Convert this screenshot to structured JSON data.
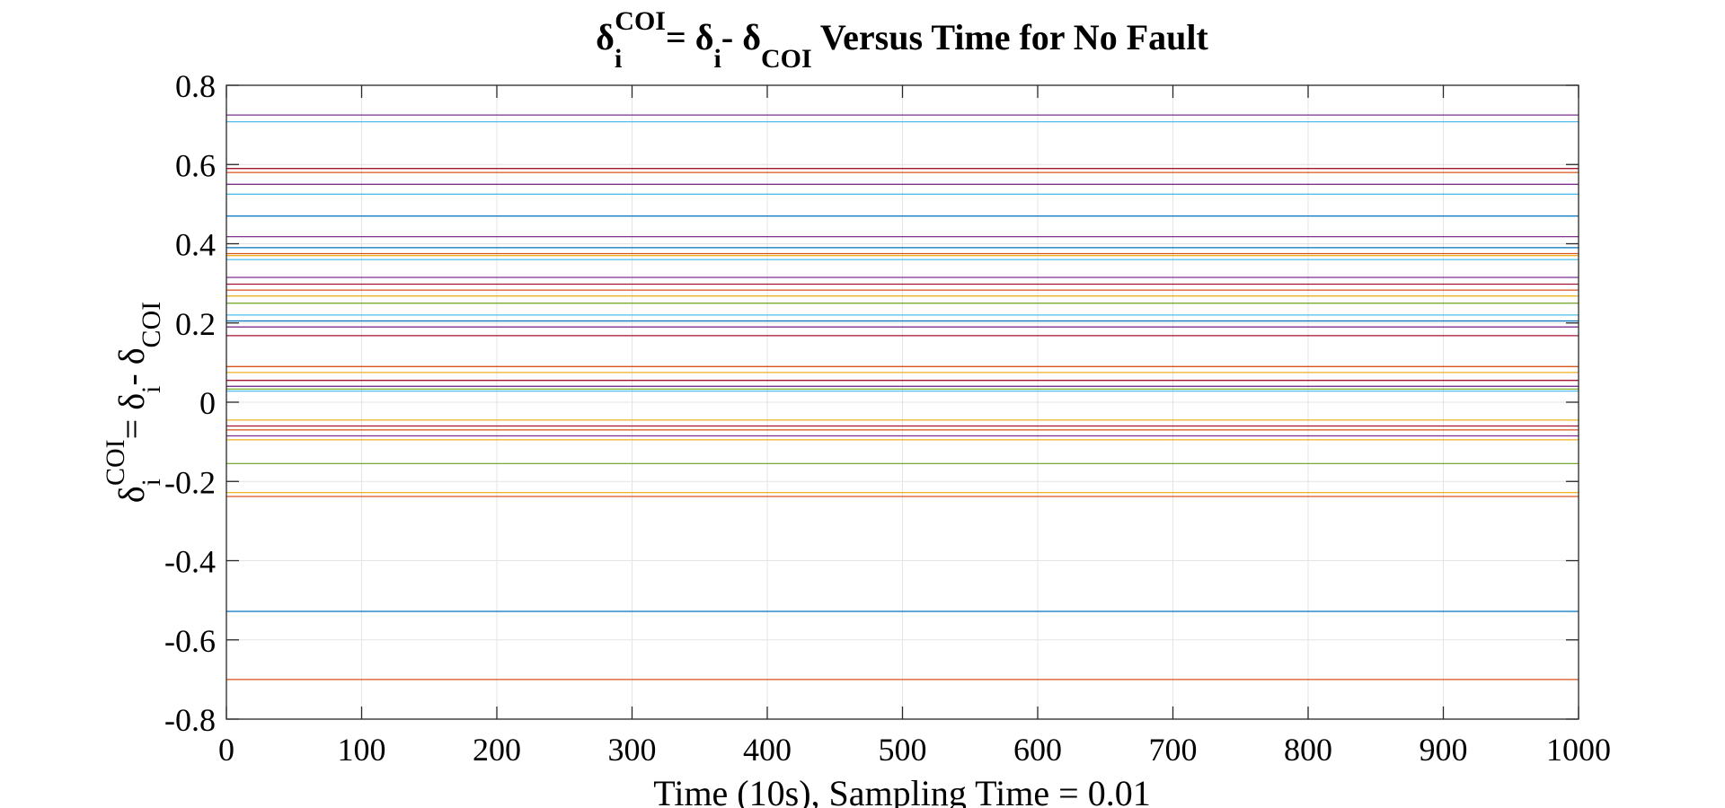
{
  "chart_data": {
    "type": "line",
    "title": {
      "delta": "δ",
      "sub_i": "i",
      "sup_coi": "COI",
      "eq": "= δ",
      "sub_i2": "i",
      "minus": "- δ",
      "sub_coi": "COI",
      "rest": " Versus Time for No Fault"
    },
    "xlabel": "Time (10s), Sampling Time = 0.01",
    "ylabel": {
      "delta": "δ",
      "sub_i": "i",
      "sup_coi": "COI",
      "eq": "= δ",
      "sub_i2": "i",
      "minus": "- δ",
      "sub_coi": "COI"
    },
    "xlim": [
      0,
      1000
    ],
    "ylim": [
      -0.8,
      0.8
    ],
    "xticks": [
      0,
      100,
      200,
      300,
      400,
      500,
      600,
      700,
      800,
      900,
      1000
    ],
    "yticks": [
      -0.8,
      -0.6,
      -0.4,
      -0.2,
      0,
      0.2,
      0.4,
      0.6,
      0.8
    ],
    "xtick_labels": [
      "0",
      "100",
      "200",
      "300",
      "400",
      "500",
      "600",
      "700",
      "800",
      "900",
      "1000"
    ],
    "ytick_labels": [
      "-0.8",
      "-0.6",
      "-0.4",
      "-0.2",
      "0",
      "0.2",
      "0.4",
      "0.6",
      "0.8"
    ],
    "grid": true,
    "x": [
      0,
      1000
    ],
    "series": [
      {
        "color": "#7e2f8e",
        "values": [
          0.725,
          0.725
        ]
      },
      {
        "color": "#4dbeee",
        "values": [
          0.708,
          0.708
        ]
      },
      {
        "color": "#a2142f",
        "values": [
          0.59,
          0.59
        ]
      },
      {
        "color": "#d95319",
        "values": [
          0.58,
          0.58
        ]
      },
      {
        "color": "#7e2f8e",
        "values": [
          0.55,
          0.55
        ]
      },
      {
        "color": "#4dbeee",
        "values": [
          0.525,
          0.525
        ]
      },
      {
        "color": "#0072bd",
        "values": [
          0.47,
          0.47
        ]
      },
      {
        "color": "#7e2f8e",
        "values": [
          0.418,
          0.418
        ]
      },
      {
        "color": "#0072bd",
        "values": [
          0.39,
          0.39
        ]
      },
      {
        "color": "#d95319",
        "values": [
          0.375,
          0.375
        ]
      },
      {
        "color": "#edb120",
        "values": [
          0.37,
          0.37
        ]
      },
      {
        "color": "#4dbeee",
        "values": [
          0.36,
          0.36
        ]
      },
      {
        "color": "#7e2f8e",
        "values": [
          0.315,
          0.315
        ]
      },
      {
        "color": "#a2142f",
        "values": [
          0.298,
          0.298
        ]
      },
      {
        "color": "#d95319",
        "values": [
          0.283,
          0.283
        ]
      },
      {
        "color": "#edb120",
        "values": [
          0.268,
          0.268
        ]
      },
      {
        "color": "#77ac30",
        "values": [
          0.25,
          0.25
        ]
      },
      {
        "color": "#4dbeee",
        "values": [
          0.22,
          0.22
        ]
      },
      {
        "color": "#0072bd",
        "values": [
          0.205,
          0.205
        ]
      },
      {
        "color": "#7e2f8e",
        "values": [
          0.19,
          0.19
        ]
      },
      {
        "color": "#a2142f",
        "values": [
          0.168,
          0.168
        ]
      },
      {
        "color": "#d95319",
        "values": [
          0.09,
          0.09
        ]
      },
      {
        "color": "#edb120",
        "values": [
          0.075,
          0.075
        ]
      },
      {
        "color": "#a2142f",
        "values": [
          0.055,
          0.055
        ]
      },
      {
        "color": "#7e2f8e",
        "values": [
          0.04,
          0.04
        ]
      },
      {
        "color": "#77ac30",
        "values": [
          0.033,
          0.033
        ]
      },
      {
        "color": "#4dbeee",
        "values": [
          0.028,
          0.028
        ]
      },
      {
        "color": "#edb120",
        "values": [
          -0.045,
          -0.045
        ]
      },
      {
        "color": "#a2142f",
        "values": [
          -0.06,
          -0.06
        ]
      },
      {
        "color": "#d95319",
        "values": [
          -0.07,
          -0.07
        ]
      },
      {
        "color": "#7e2f8e",
        "values": [
          -0.085,
          -0.085
        ]
      },
      {
        "color": "#edb120",
        "values": [
          -0.095,
          -0.095
        ]
      },
      {
        "color": "#77ac30",
        "values": [
          -0.155,
          -0.155
        ]
      },
      {
        "color": "#edb120",
        "values": [
          -0.228,
          -0.228
        ]
      },
      {
        "color": "#d95319",
        "values": [
          -0.238,
          -0.238
        ]
      },
      {
        "color": "#0072bd",
        "values": [
          -0.528,
          -0.528
        ]
      },
      {
        "color": "#d95319",
        "values": [
          -0.7,
          -0.7
        ]
      }
    ]
  }
}
